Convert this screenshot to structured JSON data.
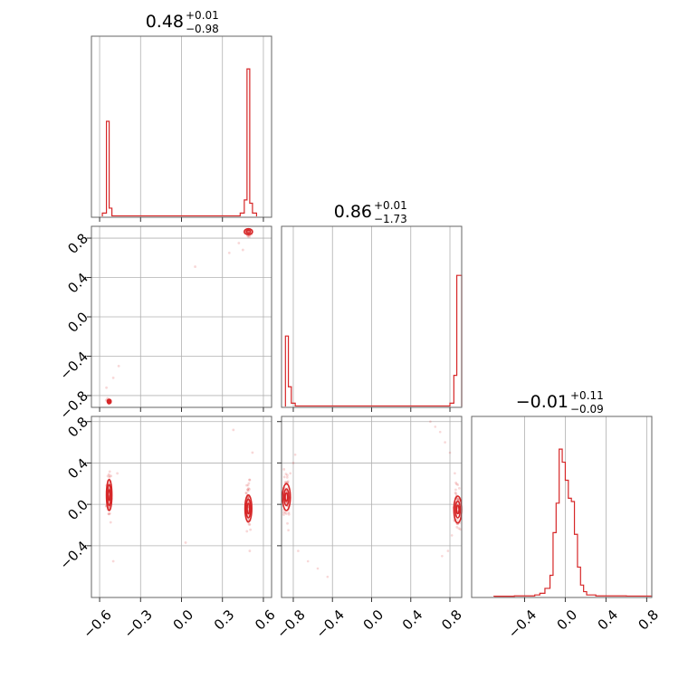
{
  "colors": {
    "series": "#d62728",
    "grid": "#b0b0b0",
    "frame": "#666666"
  },
  "chart_data": [
    {
      "type": "histogram",
      "panel": "diag-0",
      "title": {
        "value": "0.48",
        "plus": "+0.01",
        "minus": "−0.98"
      },
      "xlim": [
        -0.66,
        0.66
      ],
      "bins": [
        {
          "x0": -0.58,
          "x1": -0.55,
          "count": 0.02
        },
        {
          "x0": -0.55,
          "x1": -0.53,
          "count": 0.58
        },
        {
          "x0": -0.53,
          "x1": -0.51,
          "count": 0.05
        },
        {
          "x0": -0.51,
          "x1": 0.43,
          "count": 0.003
        },
        {
          "x0": 0.43,
          "x1": 0.46,
          "count": 0.02
        },
        {
          "x0": 0.46,
          "x1": 0.48,
          "count": 0.1
        },
        {
          "x0": 0.48,
          "x1": 0.5,
          "count": 0.9
        },
        {
          "x0": 0.5,
          "x1": 0.52,
          "count": 0.08
        },
        {
          "x0": 0.52,
          "x1": 0.55,
          "count": 0.02
        }
      ]
    },
    {
      "type": "histogram",
      "panel": "diag-1",
      "title": {
        "value": "0.86",
        "plus": "+0.01",
        "minus": "−1.73"
      },
      "xlim": [
        -0.92,
        0.92
      ],
      "bins": [
        {
          "x0": -0.88,
          "x1": -0.85,
          "count": 0.43
        },
        {
          "x0": -0.85,
          "x1": -0.82,
          "count": 0.12
        },
        {
          "x0": -0.82,
          "x1": -0.78,
          "count": 0.02
        },
        {
          "x0": -0.78,
          "x1": 0.8,
          "count": 0.003
        },
        {
          "x0": 0.8,
          "x1": 0.84,
          "count": 0.02
        },
        {
          "x0": 0.84,
          "x1": 0.87,
          "count": 0.19
        },
        {
          "x0": 0.87,
          "x1": 0.92,
          "count": 0.8
        }
      ]
    },
    {
      "type": "histogram",
      "panel": "diag-2",
      "title": {
        "value": "−0.01",
        "plus": "+0.11",
        "minus": "−0.09"
      },
      "xlim": [
        -0.92,
        0.85
      ],
      "bins": [
        {
          "x0": -0.7,
          "x1": -0.5,
          "count": 0.002
        },
        {
          "x0": -0.5,
          "x1": -0.3,
          "count": 0.004
        },
        {
          "x0": -0.3,
          "x1": -0.25,
          "count": 0.01
        },
        {
          "x0": -0.25,
          "x1": -0.2,
          "count": 0.02
        },
        {
          "x0": -0.2,
          "x1": -0.15,
          "count": 0.05
        },
        {
          "x0": -0.15,
          "x1": -0.12,
          "count": 0.13
        },
        {
          "x0": -0.12,
          "x1": -0.09,
          "count": 0.39
        },
        {
          "x0": -0.09,
          "x1": -0.06,
          "count": 0.57
        },
        {
          "x0": -0.06,
          "x1": -0.03,
          "count": 0.9
        },
        {
          "x0": -0.03,
          "x1": 0.0,
          "count": 0.82
        },
        {
          "x0": 0.0,
          "x1": 0.03,
          "count": 0.71
        },
        {
          "x0": 0.03,
          "x1": 0.06,
          "count": 0.6
        },
        {
          "x0": 0.06,
          "x1": 0.09,
          "count": 0.58
        },
        {
          "x0": 0.09,
          "x1": 0.12,
          "count": 0.38
        },
        {
          "x0": 0.12,
          "x1": 0.15,
          "count": 0.18
        },
        {
          "x0": 0.15,
          "x1": 0.18,
          "count": 0.07
        },
        {
          "x0": 0.18,
          "x1": 0.21,
          "count": 0.03
        },
        {
          "x0": 0.21,
          "x1": 0.3,
          "count": 0.01
        },
        {
          "x0": 0.3,
          "x1": 0.6,
          "count": 0.004
        },
        {
          "x0": 0.6,
          "x1": 0.85,
          "count": 0.003
        }
      ]
    },
    {
      "type": "scatter",
      "panel": "cross-1-0",
      "xlim": [
        -0.66,
        0.66
      ],
      "ylim": [
        -0.92,
        0.92
      ],
      "clusters": [
        {
          "cx": -0.53,
          "cy": -0.86,
          "sx": 0.012,
          "sy": 0.02,
          "n": 25
        },
        {
          "cx": 0.49,
          "cy": 0.86,
          "sx": 0.015,
          "sy": 0.03,
          "n": 25
        }
      ],
      "stray": [
        [
          -0.46,
          -0.5
        ],
        [
          0.1,
          0.51
        ],
        [
          0.35,
          0.65
        ],
        [
          0.42,
          0.75
        ],
        [
          -0.5,
          -0.62
        ],
        [
          -0.55,
          -0.72
        ],
        [
          0.45,
          0.68
        ]
      ],
      "contours": [
        {
          "cx": -0.53,
          "cy": -0.86,
          "rx": [
            0.014,
            0.008
          ],
          "ry": [
            0.022,
            0.012
          ]
        },
        {
          "cx": 0.49,
          "cy": 0.865,
          "rx": [
            0.03,
            0.015
          ],
          "ry": [
            0.03,
            0.015
          ]
        }
      ]
    },
    {
      "type": "scatter",
      "panel": "cross-2-0",
      "xlim": [
        -0.66,
        0.66
      ],
      "ylim": [
        -0.9,
        0.85
      ],
      "clusters": [
        {
          "cx": -0.53,
          "cy": 0.09,
          "sx": 0.012,
          "sy": 0.15,
          "n": 60
        },
        {
          "cx": 0.49,
          "cy": -0.02,
          "sx": 0.014,
          "sy": 0.15,
          "n": 60
        }
      ],
      "stray": [
        [
          0.03,
          -0.37
        ],
        [
          0.38,
          0.72
        ],
        [
          -0.47,
          0.3
        ],
        [
          0.52,
          0.5
        ],
        [
          -0.5,
          -0.55
        ],
        [
          0.5,
          -0.45
        ]
      ],
      "contours": [
        {
          "cx": -0.53,
          "cy": 0.09,
          "rx": [
            0.02,
            0.013,
            0.007
          ],
          "ry": [
            0.15,
            0.1,
            0.05
          ]
        },
        {
          "cx": 0.49,
          "cy": -0.04,
          "rx": [
            0.025,
            0.017,
            0.009
          ],
          "ry": [
            0.13,
            0.09,
            0.05
          ]
        }
      ]
    },
    {
      "type": "scatter",
      "panel": "cross-2-1",
      "xlim": [
        -0.92,
        0.92
      ],
      "ylim": [
        -0.9,
        0.85
      ],
      "clusters": [
        {
          "cx": -0.87,
          "cy": 0.07,
          "sx": 0.025,
          "sy": 0.15,
          "n": 60
        },
        {
          "cx": 0.87,
          "cy": -0.03,
          "sx": 0.025,
          "sy": 0.15,
          "n": 60
        }
      ],
      "arcs": [
        {
          "x": [
            -0.85,
            -0.75,
            -0.65,
            -0.55,
            -0.45
          ],
          "y": [
            -0.25,
            -0.45,
            -0.55,
            -0.62,
            -0.7
          ]
        },
        {
          "x": [
            0.85,
            0.8,
            0.75,
            0.7,
            0.65,
            0.6
          ],
          "y": [
            0.3,
            0.5,
            0.6,
            0.7,
            0.75,
            0.8
          ]
        },
        {
          "x": [
            0.82,
            0.78,
            0.72
          ],
          "y": [
            -0.3,
            -0.45,
            -0.5
          ]
        },
        {
          "x": [
            -0.83,
            -0.8,
            -0.78
          ],
          "y": [
            0.3,
            0.4,
            0.48
          ]
        }
      ],
      "contours": [
        {
          "cx": -0.87,
          "cy": 0.07,
          "rx": [
            0.04,
            0.025,
            0.013
          ],
          "ry": [
            0.13,
            0.08,
            0.04
          ]
        },
        {
          "cx": 0.88,
          "cy": -0.05,
          "rx": [
            0.04,
            0.025,
            0.013
          ],
          "ry": [
            0.13,
            0.08,
            0.04
          ]
        }
      ]
    }
  ],
  "axes": {
    "x0_ticks": [
      "−0.6",
      "−0.3",
      "0.0",
      "0.3",
      "0.6"
    ],
    "x0_values": [
      -0.6,
      -0.3,
      0.0,
      0.3,
      0.6
    ],
    "x1_ticks": [
      "−0.8",
      "−0.4",
      "0.0",
      "0.4",
      "0.8"
    ],
    "x1_values": [
      -0.8,
      -0.4,
      0.0,
      0.4,
      0.8
    ],
    "x2_ticks": [
      "−0.4",
      "0.0",
      "0.4",
      "0.8"
    ],
    "x2_values": [
      -0.4,
      0.0,
      0.4,
      0.8
    ],
    "y1_ticks": [
      "0.8",
      "0.4",
      "0.0",
      "−0.4",
      "−0.8"
    ],
    "y1_values": [
      0.8,
      0.4,
      0.0,
      -0.4,
      -0.8
    ],
    "y2_ticks": [
      "0.8",
      "0.4",
      "0.0",
      "−0.4"
    ],
    "y2_values": [
      0.8,
      0.4,
      0.0,
      -0.4
    ]
  }
}
